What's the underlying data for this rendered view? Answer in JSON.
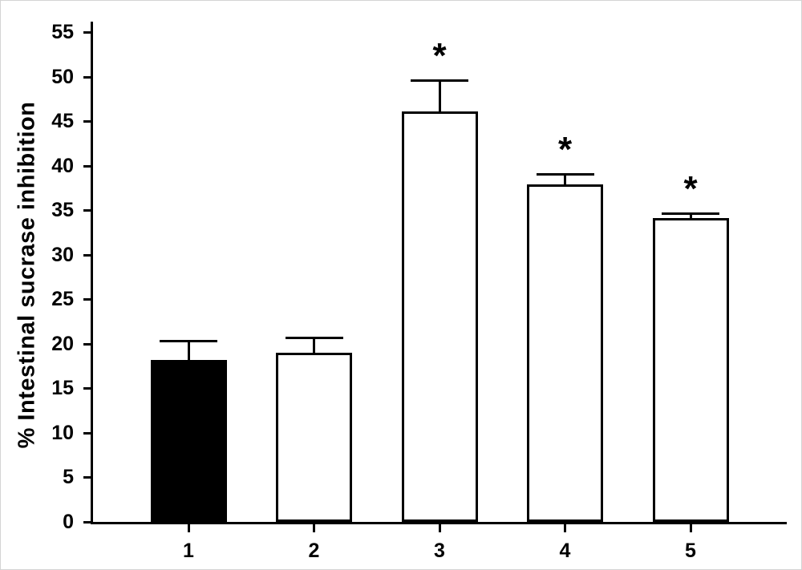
{
  "figure": {
    "background": "#ffffff",
    "frame_color": "#d4d4d4",
    "axis_color": "#000000"
  },
  "chart_data": {
    "type": "bar",
    "title": "",
    "xlabel": "",
    "ylabel": "% Intestinal sucrase inhibition",
    "ylim": [
      0,
      55
    ],
    "yticks": [
      0,
      5,
      10,
      15,
      20,
      25,
      30,
      35,
      40,
      45,
      50,
      55
    ],
    "categories": [
      "1",
      "2",
      "3",
      "4",
      "5"
    ],
    "values": [
      18.2,
      19.0,
      46.1,
      37.9,
      34.1
    ],
    "errors_plus": [
      2.1,
      1.7,
      3.5,
      1.2,
      0.6
    ],
    "bar_fill_colors": [
      "#000000",
      "#ffffff",
      "#ffffff",
      "#ffffff",
      "#ffffff"
    ],
    "bar_edge_color": "#000000",
    "error_bar_color": "#000000",
    "significance": {
      "marker": "*",
      "flags": [
        false,
        false,
        true,
        true,
        true
      ]
    },
    "grid": false,
    "legend": null
  }
}
